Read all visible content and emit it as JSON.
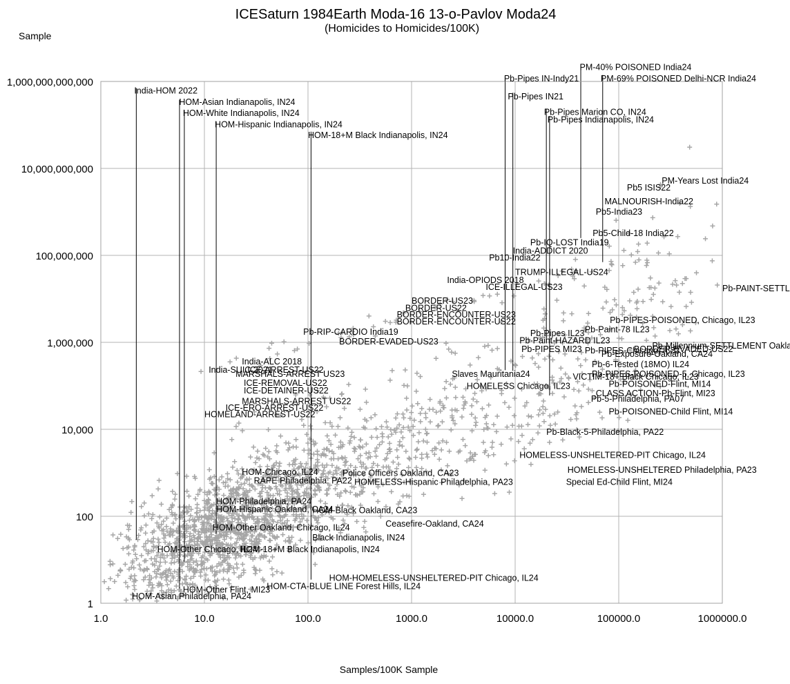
{
  "chart_data": {
    "type": "scatter",
    "title": "ICESaturn 1984Earth Moda-16 13-o-Pavlov Moda24",
    "subtitle": "(Homicides to Homicides/100K)",
    "ylabel": "Sample",
    "xlabel": "Samples/100K Sample",
    "x_scale": "log",
    "y_scale": "log",
    "xlim": [
      1,
      1000000
    ],
    "ylim": [
      1,
      1000000000000
    ],
    "grid": true,
    "x_ticks": [
      {
        "v": 1,
        "label": "1.0"
      },
      {
        "v": 10,
        "label": "10.0"
      },
      {
        "v": 100,
        "label": "100.0"
      },
      {
        "v": 1000,
        "label": "1000.0"
      },
      {
        "v": 10000,
        "label": "10000.0"
      },
      {
        "v": 100000,
        "label": "100000.0"
      },
      {
        "v": 1000000,
        "label": "1000000.0"
      }
    ],
    "y_ticks": [
      {
        "v": 1,
        "label": "1"
      },
      {
        "v": 100,
        "label": "100"
      },
      {
        "v": 10000,
        "label": "10,000"
      },
      {
        "v": 1000000,
        "label": "1,000,000"
      },
      {
        "v": 100000000,
        "label": "100,000,000"
      },
      {
        "v": 10000000000,
        "label": "10,000,000,000"
      },
      {
        "v": 1000000000000,
        "label": "1,000,000,000,000"
      }
    ],
    "marker_color": "#a6a6a6",
    "labels": [
      {
        "text": "India-HOM 2022",
        "x": 2.1,
        "y": 530000000000
      },
      {
        "text": "HOM-Asian Indianapolis, IN24",
        "x": 5.7,
        "y": 290000000000
      },
      {
        "text": "HOM-White Indianapolis, IN24",
        "x": 6.2,
        "y": 160000000000
      },
      {
        "text": "HOM-Hispanic Indianapolis, IN24",
        "x": 12.6,
        "y": 88000000000
      },
      {
        "text": "HOM-18+M Black Indianapolis, IN24",
        "x": 100,
        "y": 50000000000
      },
      {
        "text": "Pb-Pipes IN-Indy21",
        "x": 7800,
        "y": 1000000000000
      },
      {
        "text": "PM-40% POISONED India24",
        "x": 42000,
        "y": 1830000000000
      },
      {
        "text": "PM-69% POISONED Delhi-NCR India24",
        "x": 67000,
        "y": 1000000000000
      },
      {
        "text": "Pb-Pipes IN21",
        "x": 8500,
        "y": 390000000000
      },
      {
        "text": "Pb-Pipes Marion CO, IN24",
        "x": 19000,
        "y": 170000000000
      },
      {
        "text": "Pb-Pipes Indianapolis, IN24",
        "x": 20500,
        "y": 113000000000
      },
      {
        "text": "PM-Years Lost India24",
        "x": 260000,
        "y": 4500000000
      },
      {
        "text": "Pb5 ISIS22",
        "x": 120000,
        "y": 3100000000
      },
      {
        "text": "MALNOURISH-India22",
        "x": 73000,
        "y": 1500000000
      },
      {
        "text": "Pb5-India23",
        "x": 60000,
        "y": 860000000
      },
      {
        "text": "Pb5-Child-18 India22",
        "x": 56000,
        "y": 280000000
      },
      {
        "text": "Pb-IQ-LOST India19",
        "x": 14000,
        "y": 170000000
      },
      {
        "text": "India-ADDICT 2020",
        "x": 9500,
        "y": 110000000
      },
      {
        "text": "Pb10-India22",
        "x": 5600,
        "y": 76000000
      },
      {
        "text": "TRUMP-ILLEGAL-US24",
        "x": 10000,
        "y": 35000000
      },
      {
        "text": "India-OPIODS 2018",
        "x": 2200,
        "y": 23000000
      },
      {
        "text": "ICE-ILLEGAL-US23",
        "x": 5200,
        "y": 16000000
      },
      {
        "text": "Pb-PAINT-SETTLEMENT",
        "x": 1000000,
        "y": 15000000
      },
      {
        "text": "BORDER-US23",
        "x": 1000,
        "y": 7800000
      },
      {
        "text": "BORDER-US22",
        "x": 870,
        "y": 5300000
      },
      {
        "text": "BORDER-ENCOUNTER-US23",
        "x": 720,
        "y": 3700000
      },
      {
        "text": "BORDER-ENCOUNTER-US22",
        "x": 720,
        "y": 2600000
      },
      {
        "text": "Pb-PIPES-POISONED, Chicago, IL23",
        "x": 82000,
        "y": 2800000
      },
      {
        "text": "Pb-Paint-78 IL23",
        "x": 47000,
        "y": 1700000
      },
      {
        "text": "Pb-RIP-CARDIO India19",
        "x": 90,
        "y": 1500000
      },
      {
        "text": "Pb-Pipes IL23",
        "x": 14000,
        "y": 1400000
      },
      {
        "text": "Pb-Paint-HAZARD IL23",
        "x": 11000,
        "y": 950000
      },
      {
        "text": "BORDER-EVADED-US23",
        "x": 200,
        "y": 900000
      },
      {
        "text": "Pb-Millennium-SETTLEMENT Oakland",
        "x": 210000,
        "y": 720000
      },
      {
        "text": "Pb-PIPES MI23",
        "x": 11500,
        "y": 600000
      },
      {
        "text": "Pb-PIPES-Chicago, IL23",
        "x": 47000,
        "y": 560000
      },
      {
        "text": "BORDER-EVADED-US22",
        "x": 140000,
        "y": 600000
      },
      {
        "text": "Pb-Exposure-Oakland, CA24",
        "x": 68000,
        "y": 460000
      },
      {
        "text": "India-ALC 2018",
        "x": 23,
        "y": 310000
      },
      {
        "text": "Pb-6-Tested (18MO) IL24",
        "x": 55000,
        "y": 270000
      },
      {
        "text": "India-SUIC 2021",
        "x": 11,
        "y": 200000
      },
      {
        "text": "ICE-ARREST-US22",
        "x": 26,
        "y": 200000
      },
      {
        "text": "Slaves Mauritania24",
        "x": 2450,
        "y": 160000
      },
      {
        "text": "Pb-PIPES-POISONED-5, Chicago, IL23",
        "x": 55000,
        "y": 160000
      },
      {
        "text": "MARSHALS-ARREST US23",
        "x": 20,
        "y": 160000
      },
      {
        "text": "VICTIM-18+ Black Chicago, IL23",
        "x": 36000,
        "y": 140000
      },
      {
        "text": "ICE-REMOVAL-US22",
        "x": 24,
        "y": 100000
      },
      {
        "text": "Pb-POISONED-Flint, MI14",
        "x": 80000,
        "y": 95000
      },
      {
        "text": "HOMELESS Chicago, IL23",
        "x": 3400,
        "y": 85000
      },
      {
        "text": "ICE-DETAINER-US22",
        "x": 24,
        "y": 67000
      },
      {
        "text": "CLASS ACTION-Pb-Flint, MI23",
        "x": 60000,
        "y": 58000
      },
      {
        "text": "MARSHALS-ARREST US22",
        "x": 23,
        "y": 38000
      },
      {
        "text": "Pb-5-Philadelphia, PA07",
        "x": 54000,
        "y": 43000
      },
      {
        "text": "ICE-ERO-ARREST-US22",
        "x": 16,
        "y": 27000
      },
      {
        "text": "HOMELAND-ARREST-US22",
        "x": 10,
        "y": 19000
      },
      {
        "text": "Pb-POISONED-Child Flint, MI14",
        "x": 80000,
        "y": 22000
      },
      {
        "text": "Pb-Black-5-Philadelphia, PA22",
        "x": 20000,
        "y": 7400
      },
      {
        "text": "HOMELESS-UNSHELTERED-PIT Chicago, IL24",
        "x": 11000,
        "y": 2200
      },
      {
        "text": "HOMELESS-UNSHELTERED Philadelphia, PA23",
        "x": 32000,
        "y": 1000
      },
      {
        "text": "Special Ed-Child Flint, MI24",
        "x": 31000,
        "y": 530
      },
      {
        "text": "HOM-Chicago, IL24",
        "x": 23,
        "y": 900
      },
      {
        "text": "RAPE Philadelphia, PA22",
        "x": 30,
        "y": 570
      },
      {
        "text": "Police Officers Oakland, CA23",
        "x": 215,
        "y": 850
      },
      {
        "text": "HOMELESS-Hispanic Philadelphia, PA23",
        "x": 280,
        "y": 530
      },
      {
        "text": "HOM-Philadelphia, PA24",
        "x": 13,
        "y": 190
      },
      {
        "text": "HOM-Hispanic Oakland, CA24",
        "x": 13,
        "y": 125
      },
      {
        "text": "HOM-Black Oakland, CA23",
        "x": 110,
        "y": 118
      },
      {
        "text": "Ceasefire-Oakland, CA24",
        "x": 560,
        "y": 58
      },
      {
        "text": "HOM-Other Oakland, Chicago, IL24",
        "x": 12,
        "y": 47
      },
      {
        "text": "Black Indianapolis, IN24",
        "x": 110,
        "y": 28
      },
      {
        "text": "HOM-Other Chicago, IL24",
        "x": 3.5,
        "y": 15
      },
      {
        "text": "HOM-18+M Black Indianapolis, IN24",
        "x": 22,
        "y": 15
      },
      {
        "text": "HOM-HOMELESS-UNSHELTERED-PIT Chicago, IL24",
        "x": 160,
        "y": 3.3
      },
      {
        "text": "HOM-CTA-BLUE LINE Forest Hills, IL24",
        "x": 40,
        "y": 2.1
      },
      {
        "text": "HOM-Other Flint, MI23",
        "x": 6.2,
        "y": 1.75
      },
      {
        "text": "HOM-Asian Philadelphia, PA24",
        "x": 2,
        "y": 1.25
      }
    ],
    "leaders": [
      {
        "x": 2.2,
        "y1": 29,
        "y2": 700000000000
      },
      {
        "x": 5.75,
        "y1": 2.2,
        "y2": 380000000000
      },
      {
        "x": 6.4,
        "y1": 9,
        "y2": 220000000000
      },
      {
        "x": 13,
        "y1": 40,
        "y2": 120000000000
      },
      {
        "x": 107,
        "y1": 3.5,
        "y2": 70000000000
      },
      {
        "x": 8000,
        "y1": 230000,
        "y2": 1300000000000
      },
      {
        "x": 9500,
        "y1": 220000,
        "y2": 550000000000
      },
      {
        "x": 20000,
        "y1": 1000000,
        "y2": 230000000000
      },
      {
        "x": 21500,
        "y1": 60000,
        "y2": 160000000000
      },
      {
        "x": 43000,
        "y1": 250000000,
        "y2": 2400000000000
      },
      {
        "x": 70000,
        "y1": 70000000,
        "y2": 1400000000000
      }
    ]
  }
}
